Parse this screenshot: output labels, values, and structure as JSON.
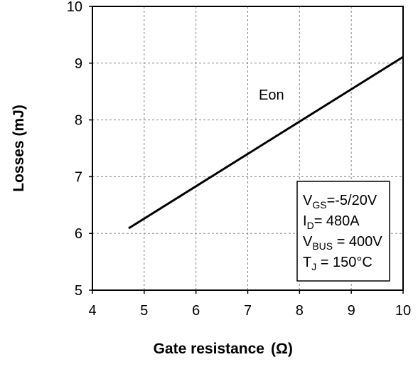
{
  "chart_data": {
    "type": "line",
    "xlabel": "Gate resistance",
    "xlabel_unit": "(Ω)",
    "ylabel": "Losses (mJ)",
    "xlim": [
      4,
      10
    ],
    "ylim": [
      5,
      10
    ],
    "xticks": [
      "4",
      "5",
      "6",
      "7",
      "8",
      "9",
      "10"
    ],
    "yticks": [
      "5",
      "6",
      "7",
      "8",
      "9",
      "10"
    ],
    "grid": true,
    "grid_style": "dashed",
    "series": [
      {
        "name": "Eon",
        "x": [
          4.7,
          10.0
        ],
        "y": [
          6.09,
          9.11
        ],
        "color": "#000000"
      }
    ],
    "conditions": [
      {
        "base": "V",
        "sub": "GS",
        "rest": "=-5/20V"
      },
      {
        "base": "I",
        "sub": "D",
        "rest": "= 480A"
      },
      {
        "base": "V",
        "sub": "BUS",
        "rest": " = 400V"
      },
      {
        "base": "T",
        "sub": "J",
        "rest": " = 150°C"
      }
    ]
  }
}
